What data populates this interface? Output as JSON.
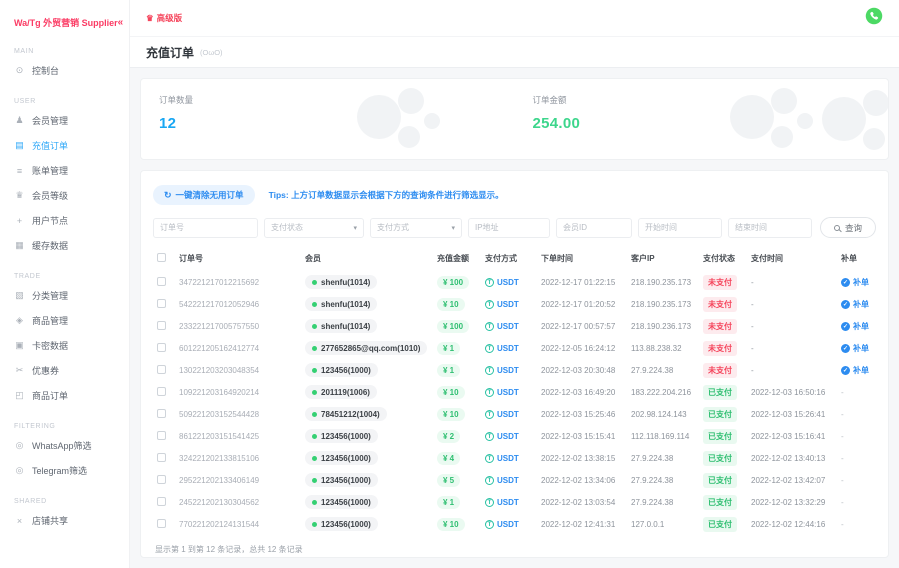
{
  "app": {
    "logo": "Wa/Tg 外贸营销 Supplier",
    "collapse_icon": "«",
    "plan_badge": "高级版"
  },
  "page": {
    "title": "充值订单",
    "kaomoji": "(OωO)"
  },
  "sidebar": {
    "sections": [
      {
        "label": "MAIN",
        "items": [
          {
            "label": "控制台",
            "icon": "dashboard",
            "active": false
          }
        ]
      },
      {
        "label": "USER",
        "items": [
          {
            "label": "会员管理",
            "icon": "users",
            "active": false
          },
          {
            "label": "充值订单",
            "icon": "recharge",
            "active": true
          },
          {
            "label": "账单管理",
            "icon": "bill",
            "active": false
          },
          {
            "label": "会员等级",
            "icon": "level",
            "active": false
          },
          {
            "label": "用户节点",
            "icon": "node",
            "active": false
          },
          {
            "label": "缓存数据",
            "icon": "cache",
            "active": false
          }
        ]
      },
      {
        "label": "TRADE",
        "items": [
          {
            "label": "分类管理",
            "icon": "category",
            "active": false
          },
          {
            "label": "商品管理",
            "icon": "goods",
            "active": false
          },
          {
            "label": "卡密数据",
            "icon": "card",
            "active": false
          },
          {
            "label": "优惠券",
            "icon": "coupon",
            "active": false
          },
          {
            "label": "商品订单",
            "icon": "order",
            "active": false
          }
        ]
      },
      {
        "label": "FILTERING",
        "items": [
          {
            "label": "WhatsApp筛选",
            "icon": "whatsapp-filter",
            "active": false
          },
          {
            "label": "Telegram筛选",
            "icon": "telegram-filter",
            "active": false
          }
        ]
      },
      {
        "label": "SHARED",
        "items": [
          {
            "label": "店铺共享",
            "icon": "share",
            "active": false
          }
        ]
      }
    ]
  },
  "stats": [
    {
      "label": "订单数量",
      "value": "12",
      "color": "#19a7f3"
    },
    {
      "label": "订单金额",
      "value": "254.00",
      "color": "#3dd68c"
    }
  ],
  "toolbar": {
    "clear_button": "一键清除无用订单",
    "tips": "Tips: 上方订单数据显示会根据下方的查询条件进行筛选显示。"
  },
  "filters": {
    "fields": [
      {
        "placeholder": "订单号",
        "type": "input",
        "name": "order-no-input"
      },
      {
        "placeholder": "支付状态",
        "type": "select",
        "name": "pay-status-select"
      },
      {
        "placeholder": "支付方式",
        "type": "select",
        "name": "pay-method-select"
      },
      {
        "placeholder": "IP地址",
        "type": "input",
        "name": "ip-input"
      },
      {
        "placeholder": "会员ID",
        "type": "input",
        "name": "member-id-input"
      },
      {
        "placeholder": "开始时间",
        "type": "input",
        "name": "start-time-input"
      },
      {
        "placeholder": "结束时间",
        "type": "input",
        "name": "end-time-input"
      }
    ],
    "search_label": "查询"
  },
  "table": {
    "headers": [
      "订单号",
      "会员",
      "充值金额",
      "支付方式",
      "下单时间",
      "客户IP",
      "支付状态",
      "支付时间",
      "补单"
    ],
    "rows": [
      {
        "order_no": "347221217012215692",
        "member": "shenfu(1014)",
        "amount": "¥ 100",
        "method": "USDT",
        "order_time": "2022-12-17 01:22:15",
        "ip": "218.190.235.173",
        "status": "未支付",
        "status_type": "unpaid",
        "pay_time": "-",
        "action": "补单"
      },
      {
        "order_no": "542221217012052946",
        "member": "shenfu(1014)",
        "amount": "¥ 10",
        "method": "USDT",
        "order_time": "2022-12-17 01:20:52",
        "ip": "218.190.235.173",
        "status": "未支付",
        "status_type": "unpaid",
        "pay_time": "-",
        "action": "补单"
      },
      {
        "order_no": "233221217005757550",
        "member": "shenfu(1014)",
        "amount": "¥ 100",
        "method": "USDT",
        "order_time": "2022-12-17 00:57:57",
        "ip": "218.190.236.173",
        "status": "未支付",
        "status_type": "unpaid",
        "pay_time": "-",
        "action": "补单"
      },
      {
        "order_no": "601221205162412774",
        "member": "277652865@qq.com(1010)",
        "amount": "¥ 1",
        "method": "USDT",
        "order_time": "2022-12-05 16:24:12",
        "ip": "113.88.238.32",
        "status": "未支付",
        "status_type": "unpaid",
        "pay_time": "-",
        "action": "补单"
      },
      {
        "order_no": "130221203203048354",
        "member": "123456(1000)",
        "amount": "¥ 1",
        "method": "USDT",
        "order_time": "2022-12-03 20:30:48",
        "ip": "27.9.224.38",
        "status": "未支付",
        "status_type": "unpaid",
        "pay_time": "-",
        "action": "补单"
      },
      {
        "order_no": "109221203164920214",
        "member": "201119(1006)",
        "amount": "¥ 10",
        "method": "USDT",
        "order_time": "2022-12-03 16:49:20",
        "ip": "183.222.204.216",
        "status": "已支付",
        "status_type": "paid",
        "pay_time": "2022-12-03 16:50:16",
        "action": "-"
      },
      {
        "order_no": "509221203152544428",
        "member": "78451212(1004)",
        "amount": "¥ 10",
        "method": "USDT",
        "order_time": "2022-12-03 15:25:46",
        "ip": "202.98.124.143",
        "status": "已支付",
        "status_type": "paid",
        "pay_time": "2022-12-03 15:26:41",
        "action": "-"
      },
      {
        "order_no": "861221203151541425",
        "member": "123456(1000)",
        "amount": "¥ 2",
        "method": "USDT",
        "order_time": "2022-12-03 15:15:41",
        "ip": "112.118.169.114",
        "status": "已支付",
        "status_type": "paid",
        "pay_time": "2022-12-03 15:16:41",
        "action": "-"
      },
      {
        "order_no": "324221202133815106",
        "member": "123456(1000)",
        "amount": "¥ 4",
        "method": "USDT",
        "order_time": "2022-12-02 13:38:15",
        "ip": "27.9.224.38",
        "status": "已支付",
        "status_type": "paid",
        "pay_time": "2022-12-02 13:40:13",
        "action": "-"
      },
      {
        "order_no": "295221202133406149",
        "member": "123456(1000)",
        "amount": "¥ 5",
        "method": "USDT",
        "order_time": "2022-12-02 13:34:06",
        "ip": "27.9.224.38",
        "status": "已支付",
        "status_type": "paid",
        "pay_time": "2022-12-02 13:42:07",
        "action": "-"
      },
      {
        "order_no": "245221202130304562",
        "member": "123456(1000)",
        "amount": "¥ 1",
        "method": "USDT",
        "order_time": "2022-12-02 13:03:54",
        "ip": "27.9.224.38",
        "status": "已支付",
        "status_type": "paid",
        "pay_time": "2022-12-02 13:32:29",
        "action": "-"
      },
      {
        "order_no": "770221202124131544",
        "member": "123456(1000)",
        "amount": "¥ 10",
        "method": "USDT",
        "order_time": "2022-12-02 12:41:31",
        "ip": "127.0.0.1",
        "status": "已支付",
        "status_type": "paid",
        "pay_time": "2022-12-02 12:44:16",
        "action": "-"
      }
    ]
  },
  "footer": {
    "summary": "显示第 1 到第 12 条记录，总共 12 条记录"
  },
  "colors": {
    "brand_pink": "#fb3b64",
    "accent_blue": "#2d8cf0",
    "active_blue": "#2fa8f8",
    "stat_blue": "#19a7f3",
    "success_green": "#3dd68c",
    "danger_red": "#f5455c",
    "usdt_teal": "#27c1a3",
    "whatsapp_green": "#4cd964"
  }
}
